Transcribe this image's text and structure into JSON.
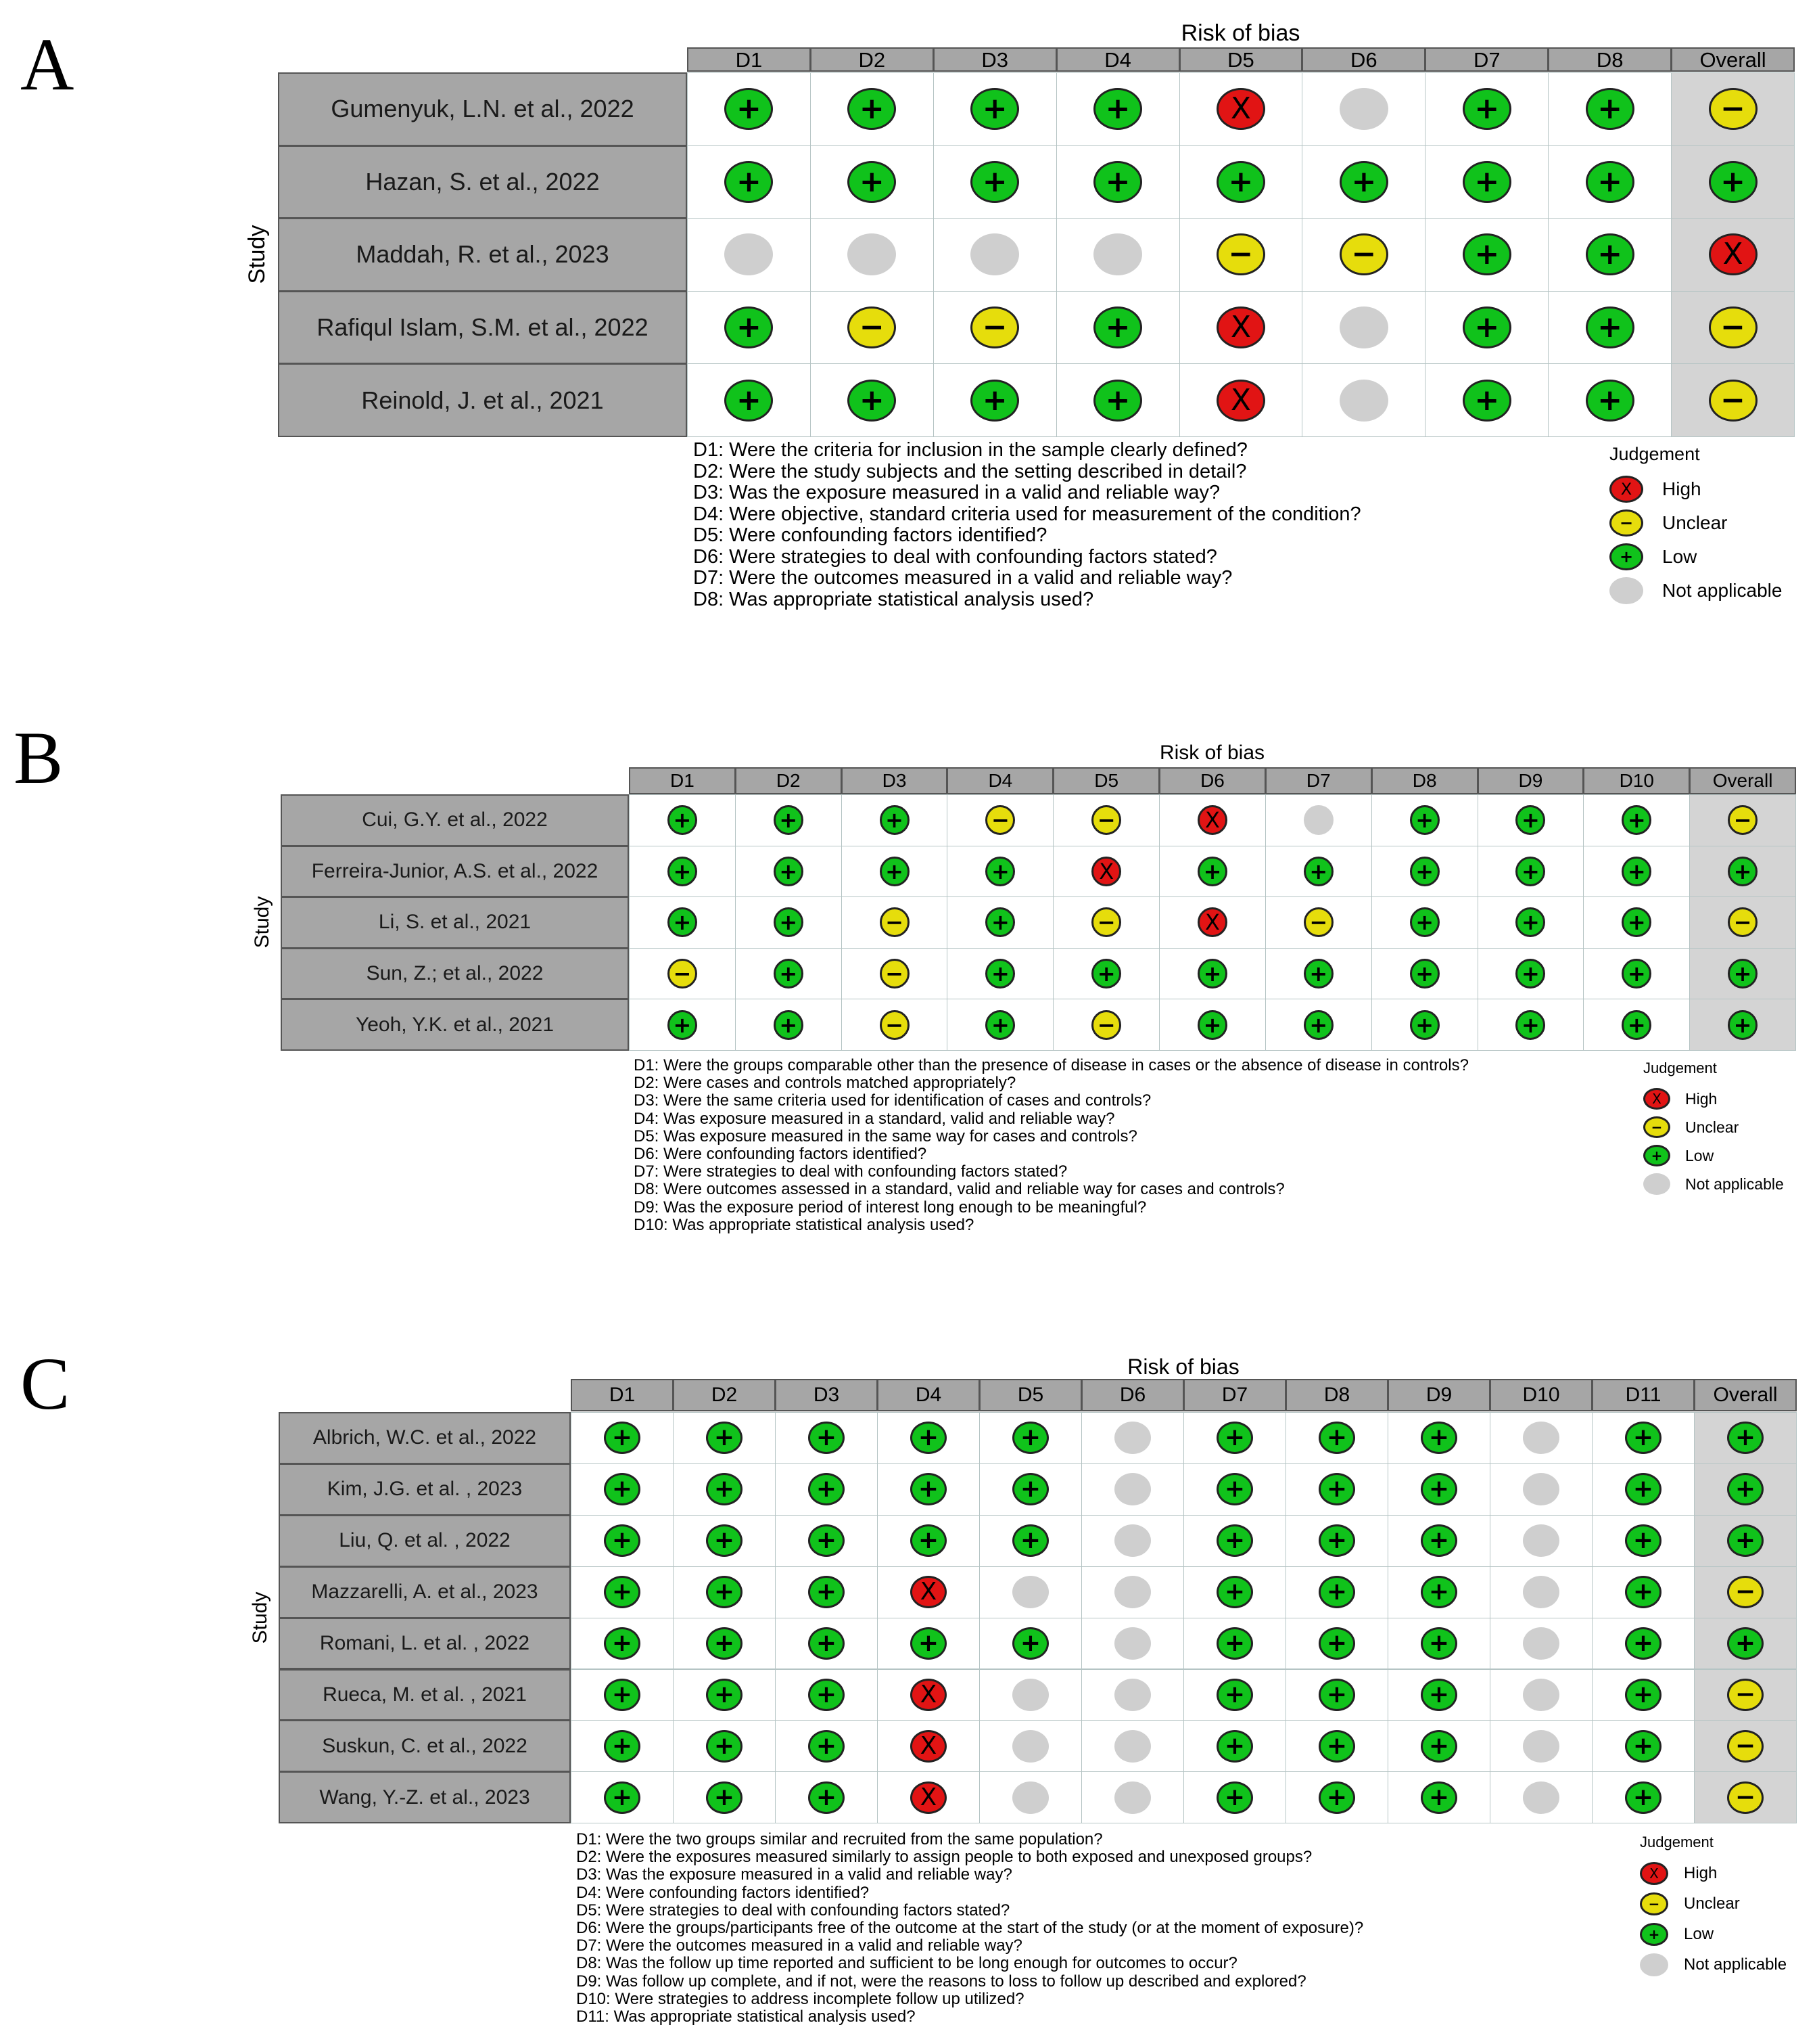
{
  "colors": {
    "low": "#10c21b",
    "unclear": "#e6dd0c",
    "high": "#e11414",
    "not_applicable": "#cfcfcf",
    "header_fill": "#a6a6a6",
    "overall_fill": "#d4d4d4"
  },
  "chart_data": [
    {
      "type": "table",
      "panel": "A",
      "title": "Risk of bias",
      "ylabel": "Study",
      "columns": [
        "D1",
        "D2",
        "D3",
        "D4",
        "D5",
        "D6",
        "D7",
        "D8",
        "Overall"
      ],
      "studies": [
        "Gumenyuk, L.N. et al., 2022",
        "Hazan, S. et al., 2022",
        "Maddah, R. et al., 2023",
        "Rafiqul Islam, S.M. et al., 2022",
        "Reinold, J. et al., 2021"
      ],
      "judgements": [
        [
          "low",
          "low",
          "low",
          "low",
          "high",
          "na",
          "low",
          "low",
          "unclear"
        ],
        [
          "low",
          "low",
          "low",
          "low",
          "low",
          "low",
          "low",
          "low",
          "low"
        ],
        [
          "na",
          "na",
          "na",
          "na",
          "unclear",
          "unclear",
          "low",
          "low",
          "high"
        ],
        [
          "low",
          "unclear",
          "unclear",
          "low",
          "high",
          "na",
          "low",
          "low",
          "unclear"
        ],
        [
          "low",
          "low",
          "low",
          "low",
          "high",
          "na",
          "low",
          "low",
          "unclear"
        ]
      ],
      "definitions": [
        "D1: Were the criteria for inclusion in the sample clearly defined?",
        "D2: Were the study subjects and the setting described in detail?",
        "D3: Was the exposure measured in a valid and reliable way?",
        "D4: Were objective, standard criteria used for measurement of the condition?",
        "D5: Were confounding factors identified?",
        "D6: Were strategies to deal with confounding factors stated?",
        "D7: Were the outcomes measured in a valid and reliable way?",
        "D8: Was appropriate statistical analysis used?"
      ],
      "legend": {
        "title": "Judgement",
        "items": [
          {
            "key": "high",
            "label": "High"
          },
          {
            "key": "unclear",
            "label": "Unclear"
          },
          {
            "key": "low",
            "label": "Low"
          },
          {
            "key": "na",
            "label": "Not applicable"
          }
        ]
      }
    },
    {
      "type": "table",
      "panel": "B",
      "title": "Risk of bias",
      "ylabel": "Study",
      "columns": [
        "D1",
        "D2",
        "D3",
        "D4",
        "D5",
        "D6",
        "D7",
        "D8",
        "D9",
        "D10",
        "Overall"
      ],
      "studies": [
        "Cui, G.Y. et al., 2022",
        "Ferreira-Junior, A.S. et al., 2022",
        "Li, S. et al., 2021",
        "Sun, Z.; et al., 2022",
        "Yeoh, Y.K. et al., 2021"
      ],
      "judgements": [
        [
          "low",
          "low",
          "low",
          "unclear",
          "unclear",
          "high",
          "na",
          "low",
          "low",
          "low",
          "unclear"
        ],
        [
          "low",
          "low",
          "low",
          "low",
          "high",
          "low",
          "low",
          "low",
          "low",
          "low",
          "low"
        ],
        [
          "low",
          "low",
          "unclear",
          "low",
          "unclear",
          "high",
          "unclear",
          "low",
          "low",
          "low",
          "unclear"
        ],
        [
          "unclear",
          "low",
          "unclear",
          "low",
          "low",
          "low",
          "low",
          "low",
          "low",
          "low",
          "low"
        ],
        [
          "low",
          "low",
          "unclear",
          "low",
          "unclear",
          "low",
          "low",
          "low",
          "low",
          "low",
          "low"
        ]
      ],
      "definitions": [
        "D1: Were the groups comparable other than the presence of disease in cases or the absence of disease in controls?",
        "D2: Were cases and controls matched appropriately?",
        "D3: Were the same criteria used for identification of cases and controls?",
        "D4: Was exposure measured in a standard, valid and reliable way?",
        "D5: Was exposure measured in the same way for cases and controls?",
        "D6:  Were confounding factors identified?",
        "D7:  Were strategies to deal with confounding factors stated?",
        "D8:  Were outcomes assessed in a standard, valid and reliable way for cases and controls?",
        "D9: Was the exposure period of interest long enough to be meaningful?",
        "D10: Was appropriate statistical analysis used?"
      ],
      "legend": {
        "title": "Judgement",
        "items": [
          {
            "key": "high",
            "label": "High"
          },
          {
            "key": "unclear",
            "label": "Unclear"
          },
          {
            "key": "low",
            "label": "Low"
          },
          {
            "key": "na",
            "label": "Not applicable"
          }
        ]
      }
    },
    {
      "type": "table",
      "panel": "C",
      "title": "Risk of bias",
      "ylabel": "Study",
      "columns": [
        "D1",
        "D2",
        "D3",
        "D4",
        "D5",
        "D6",
        "D7",
        "D8",
        "D9",
        "D10",
        "D11",
        "Overall"
      ],
      "studies": [
        "Albrich, W.C. et al., 2022",
        "Kim, J.G. et al. , 2023",
        "Liu, Q. et al. , 2022",
        "Mazzarelli, A. et al., 2023",
        "Romani, L. et al. , 2022",
        "Rueca, M. et al. , 2021",
        "Suskun, C. et al., 2022",
        "Wang, Y.-Z. et al., 2023"
      ],
      "judgements": [
        [
          "low",
          "low",
          "low",
          "low",
          "low",
          "na",
          "low",
          "low",
          "low",
          "na",
          "low",
          "low"
        ],
        [
          "low",
          "low",
          "low",
          "low",
          "low",
          "na",
          "low",
          "low",
          "low",
          "na",
          "low",
          "low"
        ],
        [
          "low",
          "low",
          "low",
          "low",
          "low",
          "na",
          "low",
          "low",
          "low",
          "na",
          "low",
          "low"
        ],
        [
          "low",
          "low",
          "low",
          "high",
          "na",
          "na",
          "low",
          "low",
          "low",
          "na",
          "low",
          "unclear"
        ],
        [
          "low",
          "low",
          "low",
          "low",
          "low",
          "na",
          "low",
          "low",
          "low",
          "na",
          "low",
          "low"
        ],
        [
          "low",
          "low",
          "low",
          "high",
          "na",
          "na",
          "low",
          "low",
          "low",
          "na",
          "low",
          "unclear"
        ],
        [
          "low",
          "low",
          "low",
          "high",
          "na",
          "na",
          "low",
          "low",
          "low",
          "na",
          "low",
          "unclear"
        ],
        [
          "low",
          "low",
          "low",
          "high",
          "na",
          "na",
          "low",
          "low",
          "low",
          "na",
          "low",
          "unclear"
        ]
      ],
      "definitions": [
        "D1: Were the two groups similar and recruited from the same population?",
        "D2: Were the exposures measured similarly to assign people to both exposed and unexposed groups?",
        "D3: Was the exposure measured in a valid and reliable way?",
        "D4: Were confounding factors identified?",
        "D5: Were strategies to deal with confounding factors stated?",
        "D6: Were the groups/participants free of the outcome at the start of the study (or at the moment of exposure)?",
        "D7: Were the outcomes measured in a valid and reliable way?",
        "D8: Was the follow up time reported and sufficient to be long enough for outcomes to occur?",
        "D9: Was follow up complete, and if not, were the reasons to loss to follow up described and explored?",
        "D10: Were strategies to address incomplete follow up utilized?",
        "D11: Was appropriate statistical analysis used?"
      ],
      "legend": {
        "title": "Judgement",
        "items": [
          {
            "key": "high",
            "label": "High"
          },
          {
            "key": "unclear",
            "label": "Unclear"
          },
          {
            "key": "low",
            "label": "Low"
          },
          {
            "key": "na",
            "label": "Not applicable"
          }
        ]
      }
    }
  ]
}
